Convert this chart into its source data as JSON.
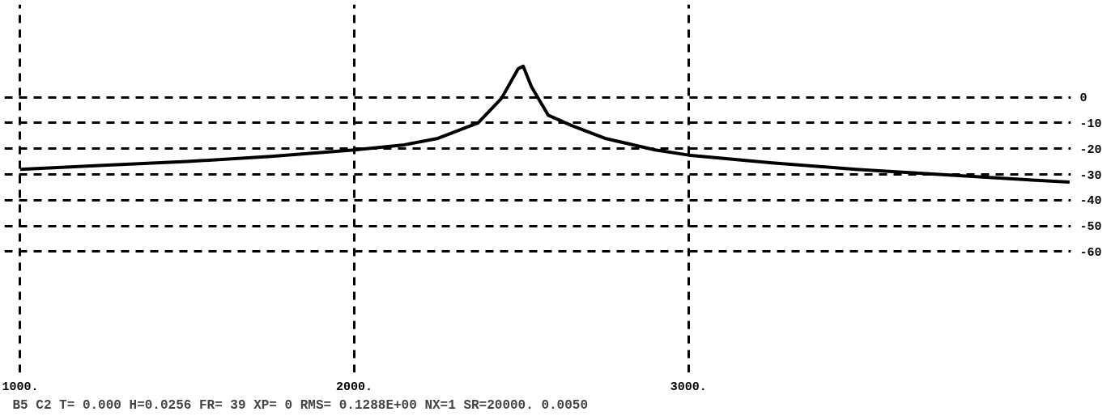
{
  "chart_data": {
    "type": "line",
    "x": [
      1000,
      1250,
      1500,
      1750,
      2000,
      2150,
      2250,
      2370,
      2440,
      2490,
      2505,
      2530,
      2580,
      2650,
      2750,
      2900,
      3000,
      3250,
      3500,
      3750,
      4000,
      4140
    ],
    "series": [
      {
        "color": "#000000",
        "values": [
          -28,
          -26.5,
          -25,
          -23,
          -20.5,
          -18.5,
          -16,
          -10,
          -0.5,
          11,
          12,
          4,
          -7,
          -11,
          -16,
          -20.5,
          -22.5,
          -25.5,
          -28,
          -30,
          -32,
          -33
        ]
      }
    ],
    "xlim": [
      953,
      4144
    ],
    "ylim": [
      -107,
      36
    ],
    "xticks": [
      {
        "value": 1000,
        "label": "1000."
      },
      {
        "value": 2000,
        "label": "2000."
      },
      {
        "value": 3000,
        "label": "3000."
      }
    ],
    "yticks": [
      0,
      -10,
      -20,
      -30,
      -40,
      -50,
      -60
    ],
    "grid": true,
    "line_style": "solid",
    "annotations": [
      "B5 C2 T= 0.000 H=0.0256 FR= 39 XP= 0 RMS= 0.1288E+00 NX=1 SR=20000. 0.0050"
    ]
  }
}
